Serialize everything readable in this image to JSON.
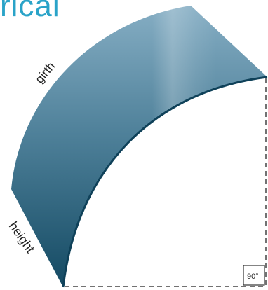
{
  "heading": "rical",
  "diagram": {
    "dimension_labels": {
      "girth": "girth",
      "height": "height",
      "angle": "90°"
    },
    "colors": {
      "heading": "#2aa3c8",
      "panel_top": "#7fa9c0",
      "panel_mid": "#4c7f99",
      "panel_bottom": "#174d66",
      "panel_edge": "#134a63",
      "dashed_line": "#444444"
    }
  }
}
